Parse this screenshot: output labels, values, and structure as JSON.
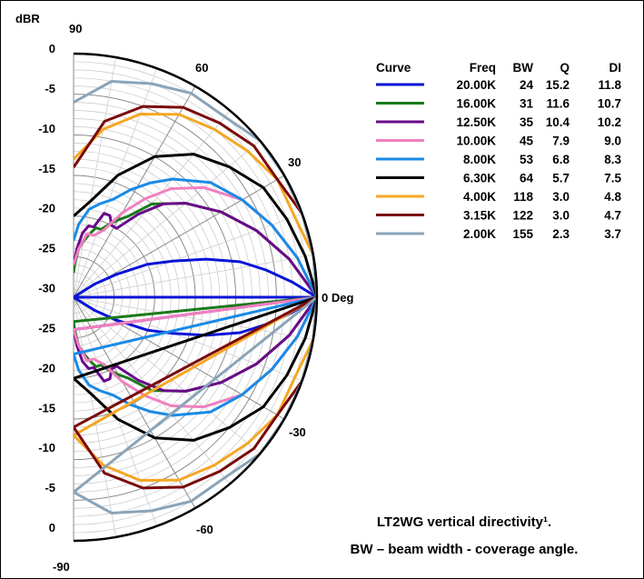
{
  "chart_data": {
    "type": "polar-line",
    "title": "LT2WG vertical directivity¹.",
    "subtitle": "BW – beam width - coverage angle.",
    "radial_unit_label": "dBR",
    "radial_range_db": [
      -30,
      0
    ],
    "radial_left_ticks": [
      "0",
      "-5",
      "-10",
      "-15",
      "-20",
      "-25",
      "-30",
      "-25",
      "-20",
      "-15",
      "-10",
      "-5",
      "0"
    ],
    "angle_range_deg": [
      -90,
      90
    ],
    "angle_tick_labels": [
      "90",
      "60",
      "30",
      "0 Deg",
      "-30",
      "-60",
      "-90"
    ],
    "grid": true,
    "legend_position": "top-right",
    "legend_headers": [
      "Curve",
      "Freq",
      "BW",
      "Q",
      "DI"
    ],
    "series": [
      {
        "freq": "20.00K",
        "bw": "24",
        "q": "15.2",
        "di": "11.8",
        "color": "#0a14d6",
        "levels_db": [
          [
            0,
            0
          ],
          [
            4,
            -3
          ],
          [
            8,
            -6
          ],
          [
            12,
            -9
          ],
          [
            16,
            -13
          ],
          [
            20,
            -17
          ],
          [
            24,
            -20
          ],
          [
            28,
            -24
          ],
          [
            32,
            -27
          ],
          [
            36,
            -30
          ]
        ]
      },
      {
        "freq": "16.00K",
        "bw": "31",
        "q": "11.6",
        "di": "10.7",
        "color": "#1a7a1a",
        "levels_db": [
          [
            0,
            0
          ],
          [
            10,
            -3
          ],
          [
            20,
            -6
          ],
          [
            30,
            -9
          ],
          [
            40,
            -12
          ],
          [
            50,
            -15
          ],
          [
            56,
            -18
          ],
          [
            60,
            -19
          ],
          [
            64,
            -20
          ],
          [
            68,
            -21
          ],
          [
            72,
            -21
          ],
          [
            76,
            -22
          ],
          [
            80,
            -23
          ],
          [
            84,
            -24
          ],
          [
            88,
            -26
          ],
          [
            90,
            -27
          ]
        ]
      },
      {
        "freq": "12.50K",
        "bw": "35",
        "q": "10.4",
        "di": "10.2",
        "color": "#6a0a8a",
        "levels_db": [
          [
            0,
            0
          ],
          [
            10,
            -3
          ],
          [
            20,
            -6
          ],
          [
            30,
            -9
          ],
          [
            40,
            -12
          ],
          [
            46,
            -14
          ],
          [
            52,
            -17
          ],
          [
            58,
            -20
          ],
          [
            62,
            -20
          ],
          [
            66,
            -19
          ],
          [
            70,
            -19
          ],
          [
            74,
            -21
          ],
          [
            78,
            -21
          ],
          [
            82,
            -22
          ],
          [
            86,
            -24
          ],
          [
            90,
            -26
          ]
        ]
      },
      {
        "freq": "10.00K",
        "bw": "45",
        "q": "7.9",
        "di": "9.0",
        "color": "#f080c0",
        "levels_db": [
          [
            0,
            0
          ],
          [
            10,
            -2
          ],
          [
            20,
            -4
          ],
          [
            30,
            -6
          ],
          [
            40,
            -9
          ],
          [
            48,
            -12
          ],
          [
            54,
            -15
          ],
          [
            60,
            -18
          ],
          [
            66,
            -21
          ],
          [
            72,
            -22
          ],
          [
            78,
            -22
          ],
          [
            84,
            -24
          ],
          [
            90,
            -26
          ]
        ]
      },
      {
        "freq": "8.00K",
        "bw": "53",
        "q": "6.8",
        "di": "8.3",
        "color": "#1a8ae6",
        "levels_db": [
          [
            0,
            0
          ],
          [
            10,
            -2
          ],
          [
            20,
            -4
          ],
          [
            30,
            -6
          ],
          [
            40,
            -8
          ],
          [
            50,
            -11
          ],
          [
            56,
            -13
          ],
          [
            62,
            -15
          ],
          [
            68,
            -17
          ],
          [
            74,
            -18
          ],
          [
            80,
            -19
          ],
          [
            86,
            -21
          ],
          [
            90,
            -23
          ]
        ]
      },
      {
        "freq": "6.30K",
        "bw": "64",
        "q": "5.7",
        "di": "7.5",
        "color": "#000000",
        "levels_db": [
          [
            0,
            0
          ],
          [
            10,
            -1
          ],
          [
            20,
            -2
          ],
          [
            30,
            -3
          ],
          [
            40,
            -5
          ],
          [
            50,
            -7
          ],
          [
            60,
            -10
          ],
          [
            70,
            -14
          ],
          [
            80,
            -18
          ],
          [
            90,
            -20
          ]
        ]
      },
      {
        "freq": "4.00K",
        "bw": "118",
        "q": "3.0",
        "di": "4.8",
        "color": "#f5a623",
        "levels_db": [
          [
            0,
            0
          ],
          [
            10,
            0
          ],
          [
            20,
            -1
          ],
          [
            30,
            -1
          ],
          [
            40,
            -2
          ],
          [
            50,
            -3
          ],
          [
            60,
            -4
          ],
          [
            70,
            -6
          ],
          [
            80,
            -9
          ],
          [
            90,
            -13
          ]
        ]
      },
      {
        "freq": "3.15K",
        "bw": "122",
        "q": "3.0",
        "di": "4.7",
        "color": "#7a0a0a",
        "levels_db": [
          [
            0,
            0
          ],
          [
            10,
            0
          ],
          [
            20,
            0
          ],
          [
            30,
            -1
          ],
          [
            40,
            -1
          ],
          [
            50,
            -2
          ],
          [
            60,
            -3
          ],
          [
            70,
            -5
          ],
          [
            80,
            -8
          ],
          [
            90,
            -14
          ]
        ]
      },
      {
        "freq": "2.00K",
        "bw": "155",
        "q": "2.3",
        "di": "3.7",
        "color": "#8aa4b8",
        "levels_db": [
          [
            0,
            0
          ],
          [
            10,
            0
          ],
          [
            20,
            0
          ],
          [
            30,
            0
          ],
          [
            40,
            0
          ],
          [
            50,
            -1
          ],
          [
            60,
            -1
          ],
          [
            70,
            -2
          ],
          [
            80,
            -3
          ],
          [
            90,
            -6
          ]
        ]
      }
    ]
  }
}
